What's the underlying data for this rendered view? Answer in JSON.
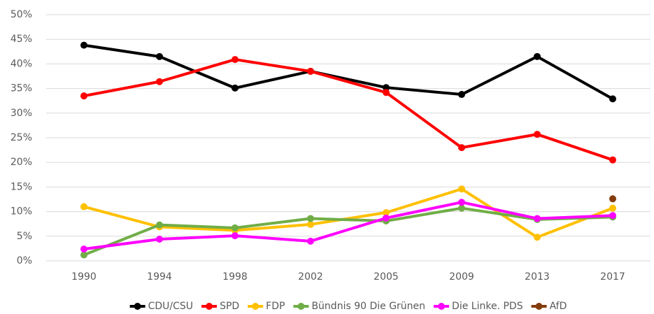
{
  "chart_data": {
    "type": "line",
    "categories": [
      "1990",
      "1994",
      "1998",
      "2002",
      "2005",
      "2009",
      "2013",
      "2017"
    ],
    "series": [
      {
        "name": "CDU/CSU",
        "color": "#000000",
        "values": [
          43.8,
          41.5,
          35.1,
          38.5,
          35.2,
          33.8,
          41.5,
          32.9
        ]
      },
      {
        "name": "SPD",
        "color": "#ff0000",
        "values": [
          33.5,
          36.4,
          40.9,
          38.5,
          34.2,
          23.0,
          25.7,
          20.5
        ]
      },
      {
        "name": "FDP",
        "color": "#ffc000",
        "values": [
          11.0,
          6.9,
          6.2,
          7.4,
          9.8,
          14.6,
          4.8,
          10.7
        ]
      },
      {
        "name": "Bündnis 90 Die Grünen",
        "color": "#70ad47",
        "values": [
          1.2,
          7.3,
          6.7,
          8.6,
          8.1,
          10.7,
          8.4,
          8.9
        ]
      },
      {
        "name": "Die Linke. PDS",
        "color": "#ff00ff",
        "values": [
          2.4,
          4.4,
          5.1,
          4.0,
          8.7,
          11.9,
          8.6,
          9.2
        ]
      },
      {
        "name": "AfD",
        "color": "#843c0c",
        "values": [
          null,
          null,
          null,
          null,
          null,
          null,
          null,
          12.6
        ]
      }
    ],
    "ylim": [
      0,
      50
    ],
    "yticks": [
      {
        "value": 0,
        "label": "0%"
      },
      {
        "value": 5,
        "label": "5%"
      },
      {
        "value": 10,
        "label": "10%"
      },
      {
        "value": 15,
        "label": "15%"
      },
      {
        "value": 20,
        "label": "20%"
      },
      {
        "value": 25,
        "label": "25%"
      },
      {
        "value": 30,
        "label": "30%"
      },
      {
        "value": 35,
        "label": "35%"
      },
      {
        "value": 40,
        "label": "40%"
      },
      {
        "value": 45,
        "label": "45%"
      },
      {
        "value": 50,
        "label": "50%"
      }
    ],
    "grid": true,
    "legend": "bottom"
  }
}
